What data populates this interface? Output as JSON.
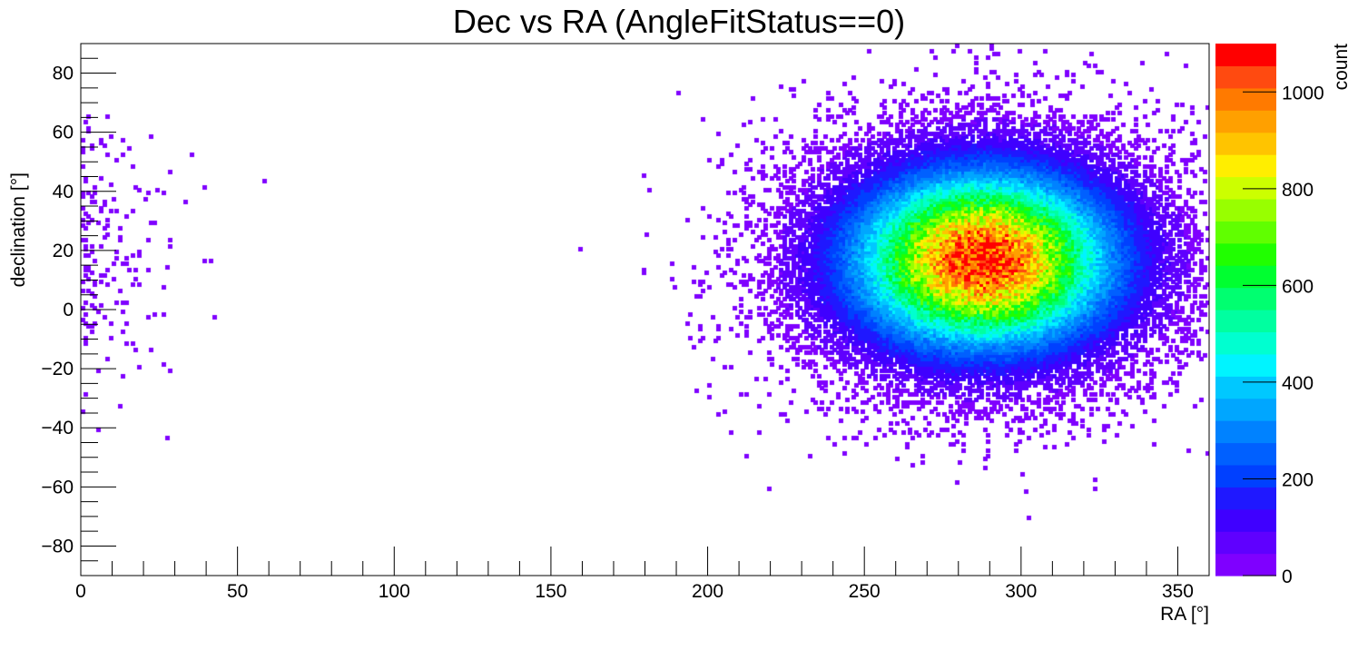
{
  "chart_data": {
    "type": "heatmap",
    "title": "Dec vs RA (AngleFitStatus==0)",
    "xlabel": "RA [°]",
    "ylabel": "declination [°]",
    "zlabel": "count",
    "xlim": [
      0,
      360
    ],
    "ylim": [
      -90,
      90
    ],
    "zlim": [
      0,
      1100
    ],
    "x_ticks": [
      0,
      50,
      100,
      150,
      200,
      250,
      300,
      350
    ],
    "y_ticks": [
      -80,
      -60,
      -40,
      -20,
      0,
      20,
      40,
      60,
      80
    ],
    "z_ticks": [
      0,
      200,
      400,
      600,
      800,
      1000
    ],
    "bins": {
      "nx": 360,
      "ny": 180
    },
    "peak": {
      "ra": 288,
      "dec": 17,
      "count": 1080
    },
    "palette": [
      "#7f00ff",
      "#5f00ff",
      "#3f00ff",
      "#1f18ff",
      "#0040ff",
      "#0060ff",
      "#0082ff",
      "#00a6ff",
      "#00c8ff",
      "#00f4ff",
      "#00ffd0",
      "#00ffa0",
      "#00ff70",
      "#00ff30",
      "#20ff00",
      "#60ff00",
      "#98ff00",
      "#ccff00",
      "#ffee00",
      "#ffc400",
      "#ffa000",
      "#ff7a00",
      "#ff4a10",
      "#ff0000"
    ],
    "grid": false,
    "colorbar": "right"
  }
}
